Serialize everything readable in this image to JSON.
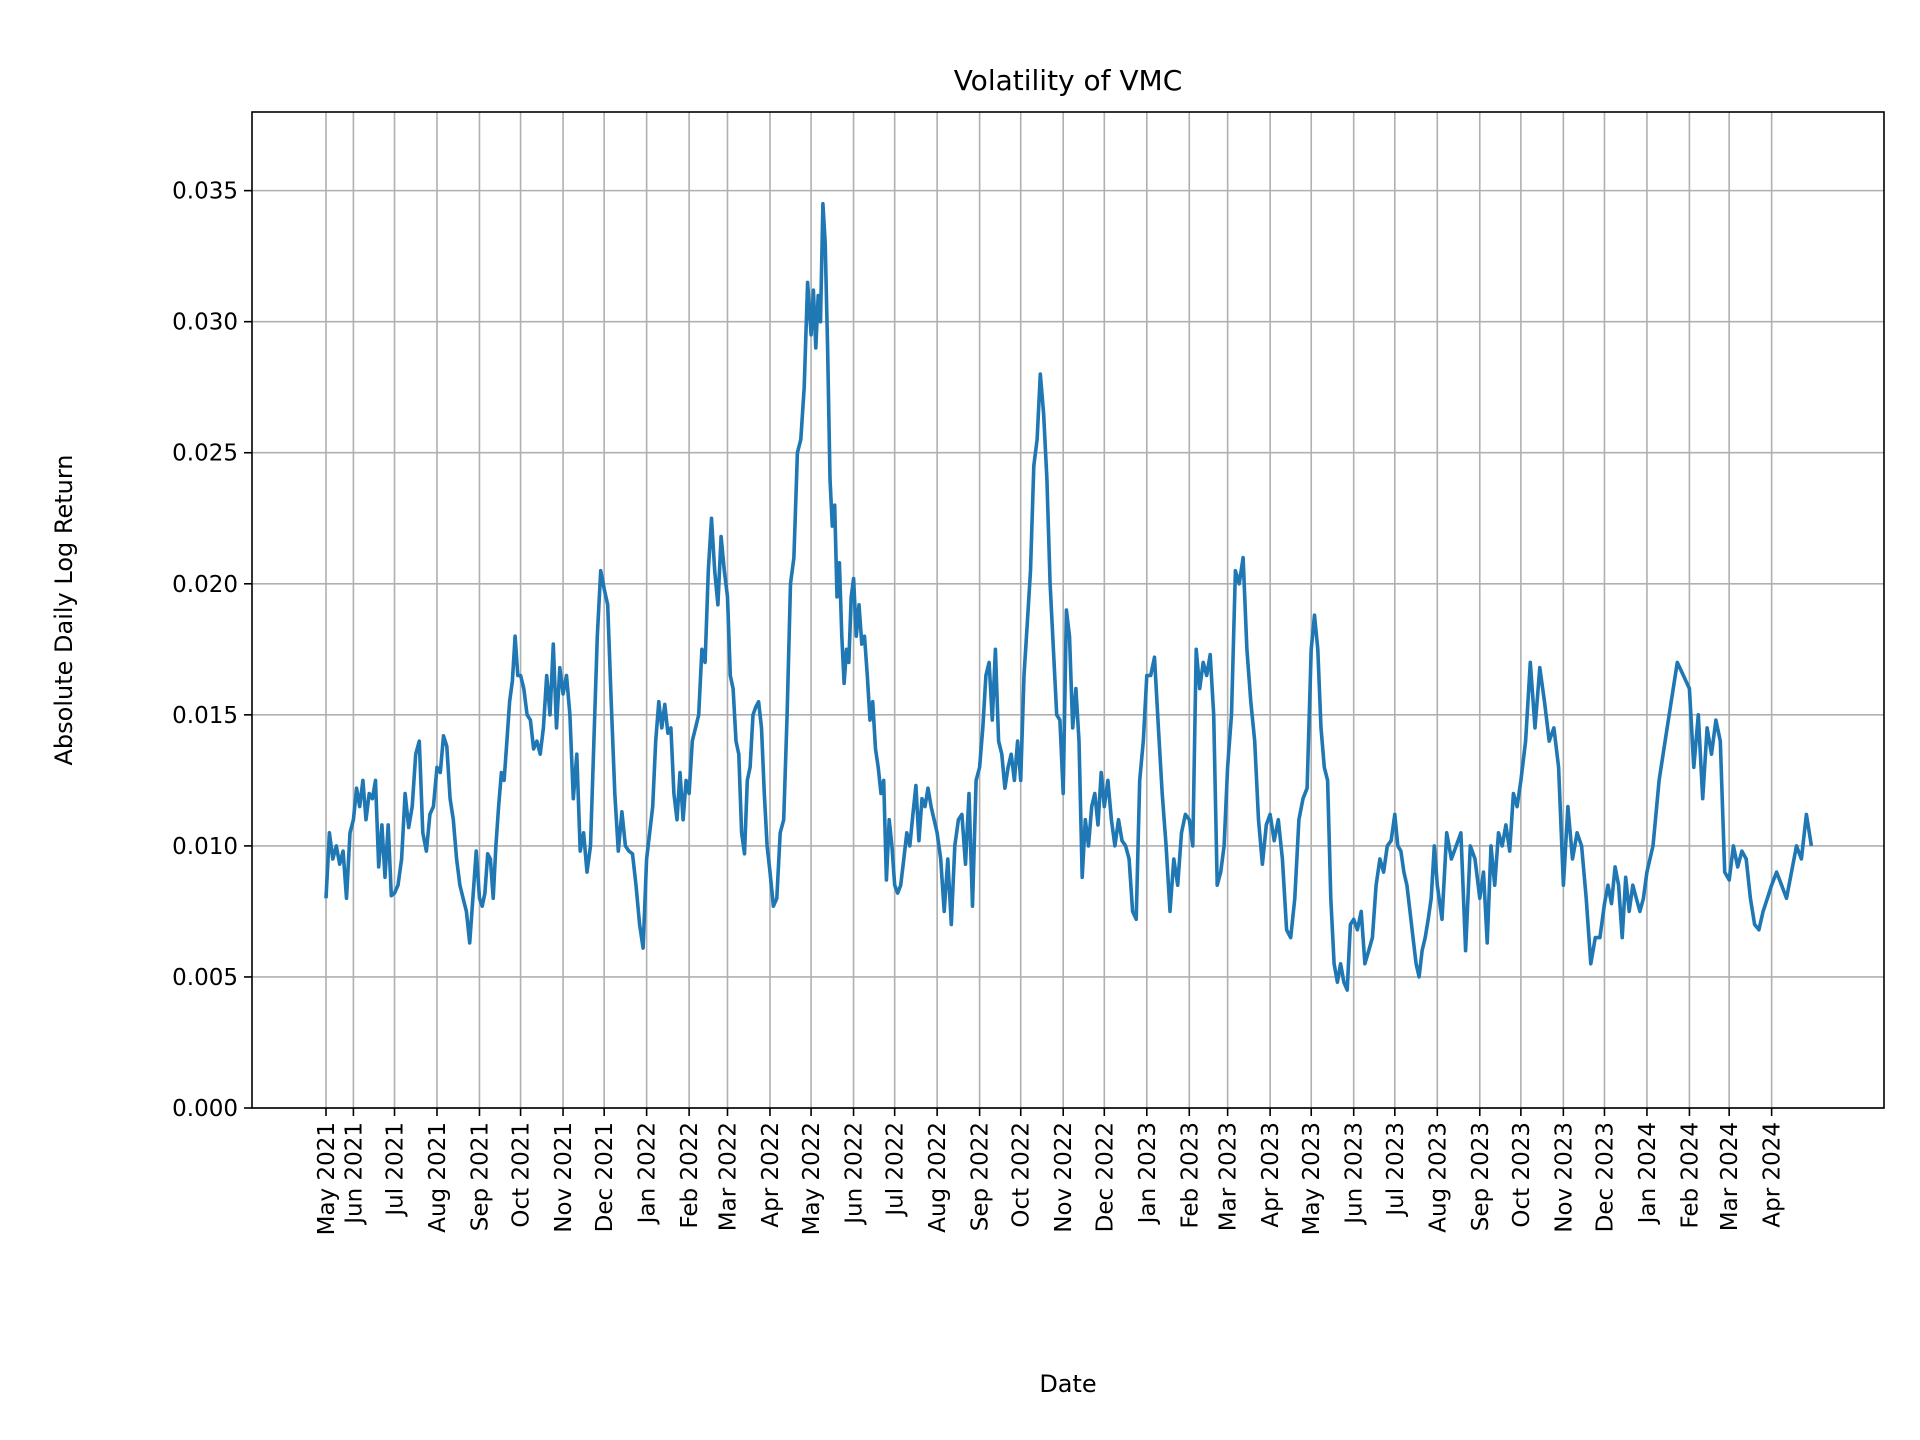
{
  "chart_data": {
    "type": "line",
    "title": "Volatility of VMC",
    "xlabel": "Date",
    "ylabel": "Absolute Daily Log Return",
    "xlim": [
      "2021-03-19",
      "2024-06-22"
    ],
    "ylim": [
      0,
      0.038
    ],
    "grid": true,
    "line_color": "#1f77b4",
    "grid_color": "#b0b0b0",
    "yticks": [
      0,
      0.005,
      0.01,
      0.015,
      0.02,
      0.025,
      0.03,
      0.035
    ],
    "ytick_labels": [
      "0.000",
      "0.005",
      "0.010",
      "0.015",
      "0.020",
      "0.025",
      "0.030",
      "0.035"
    ],
    "xticks": [
      {
        "date": "2021-05-12",
        "label": "May 2021"
      },
      {
        "date": "2021-06-01",
        "label": "Jun 2021"
      },
      {
        "date": "2021-07-01",
        "label": "Jul 2021"
      },
      {
        "date": "2021-08-01",
        "label": "Aug 2021"
      },
      {
        "date": "2021-09-01",
        "label": "Sep 2021"
      },
      {
        "date": "2021-10-01",
        "label": "Oct 2021"
      },
      {
        "date": "2021-11-01",
        "label": "Nov 2021"
      },
      {
        "date": "2021-12-01",
        "label": "Dec 2021"
      },
      {
        "date": "2022-01-01",
        "label": "Jan 2022"
      },
      {
        "date": "2022-02-01",
        "label": "Feb 2022"
      },
      {
        "date": "2022-03-01",
        "label": "Mar 2022"
      },
      {
        "date": "2022-04-01",
        "label": "Apr 2022"
      },
      {
        "date": "2022-05-01",
        "label": "May 2022"
      },
      {
        "date": "2022-06-01",
        "label": "Jun 2022"
      },
      {
        "date": "2022-07-01",
        "label": "Jul 2022"
      },
      {
        "date": "2022-08-01",
        "label": "Aug 2022"
      },
      {
        "date": "2022-09-01",
        "label": "Sep 2022"
      },
      {
        "date": "2022-10-01",
        "label": "Oct 2022"
      },
      {
        "date": "2022-11-01",
        "label": "Nov 2022"
      },
      {
        "date": "2022-12-01",
        "label": "Dec 2022"
      },
      {
        "date": "2023-01-01",
        "label": "Jan 2023"
      },
      {
        "date": "2023-02-01",
        "label": "Feb 2023"
      },
      {
        "date": "2023-03-01",
        "label": "Mar 2023"
      },
      {
        "date": "2023-04-01",
        "label": "Apr 2023"
      },
      {
        "date": "2023-05-01",
        "label": "May 2023"
      },
      {
        "date": "2023-06-01",
        "label": "Jun 2023"
      },
      {
        "date": "2023-07-01",
        "label": "Jul 2023"
      },
      {
        "date": "2023-08-01",
        "label": "Aug 2023"
      },
      {
        "date": "2023-09-01",
        "label": "Sep 2023"
      },
      {
        "date": "2023-10-01",
        "label": "Oct 2023"
      },
      {
        "date": "2023-11-01",
        "label": "Nov 2023"
      },
      {
        "date": "2023-12-01",
        "label": "Dec 2023"
      },
      {
        "date": "2024-01-01",
        "label": "Jan 2024"
      },
      {
        "date": "2024-02-01",
        "label": "Feb 2024"
      },
      {
        "date": "2024-03-01",
        "label": "Mar 2024"
      },
      {
        "date": "2024-04-01",
        "label": "Apr 2024"
      }
    ],
    "series_by_period": [
      {
        "start": "2021-05-12",
        "values": [
          0.008,
          0.0105,
          0.0095,
          0.01,
          0.0093,
          0.0098,
          0.008,
          0.0105
        ]
      },
      {
        "start": "2021-06-01",
        "values": [
          0.011,
          0.0122,
          0.0115,
          0.0125,
          0.011,
          0.012,
          0.0118,
          0.0125,
          0.0092,
          0.0108,
          0.0088,
          0.0108,
          0.0081
        ]
      },
      {
        "start": "2021-07-01",
        "values": [
          0.0082,
          0.0085,
          0.0095,
          0.012,
          0.0107,
          0.0115,
          0.0135,
          0.014,
          0.0105,
          0.0098,
          0.0112,
          0.0115
        ]
      },
      {
        "start": "2021-08-01",
        "values": [
          0.013,
          0.0128,
          0.0142,
          0.0138,
          0.0118,
          0.011,
          0.0095,
          0.0085,
          0.008,
          0.0075,
          0.0063,
          0.008,
          0.0098
        ]
      },
      {
        "start": "2021-09-01",
        "values": [
          0.008,
          0.0077,
          0.0082,
          0.0097,
          0.0095,
          0.008,
          0.01,
          0.0115,
          0.0128,
          0.0125,
          0.014,
          0.0155,
          0.0163,
          0.018,
          0.0165
        ]
      },
      {
        "start": "2021-10-01",
        "values": [
          0.0165,
          0.016,
          0.015,
          0.0148,
          0.0137,
          0.014,
          0.0135,
          0.0145,
          0.0165,
          0.015,
          0.0177,
          0.0145,
          0.0168
        ]
      },
      {
        "start": "2021-11-01",
        "values": [
          0.0158,
          0.0165,
          0.015,
          0.0118,
          0.0135,
          0.0098,
          0.0105,
          0.009,
          0.01,
          0.014,
          0.018,
          0.0205
        ]
      },
      {
        "start": "2021-12-01",
        "values": [
          0.0198,
          0.0192,
          0.0155,
          0.012,
          0.0098,
          0.0113,
          0.01,
          0.0098,
          0.0097,
          0.0085,
          0.007,
          0.0061
        ]
      },
      {
        "start": "2022-01-01",
        "values": [
          0.0095,
          0.0105,
          0.0115,
          0.014,
          0.0155,
          0.0145,
          0.0154,
          0.0143,
          0.0145,
          0.012,
          0.011,
          0.0128,
          0.011,
          0.0125
        ]
      },
      {
        "start": "2022-02-01",
        "values": [
          0.012,
          0.014,
          0.0145,
          0.015,
          0.0175,
          0.017,
          0.0205,
          0.0225,
          0.0205,
          0.0192,
          0.0218,
          0.0205
        ]
      },
      {
        "start": "2022-03-01",
        "values": [
          0.0195,
          0.0165,
          0.016,
          0.014,
          0.0135,
          0.0105,
          0.0097,
          0.0125,
          0.013,
          0.015,
          0.0153,
          0.0155,
          0.0145,
          0.012,
          0.01
        ]
      },
      {
        "start": "2022-04-01",
        "values": [
          0.009,
          0.0077,
          0.008,
          0.0105,
          0.011,
          0.015,
          0.02,
          0.021,
          0.025,
          0.0255,
          0.0275,
          0.0315
        ]
      },
      {
        "start": "2022-05-01",
        "values": [
          0.0295,
          0.0312,
          0.029,
          0.031,
          0.03,
          0.0345,
          0.033,
          0.029,
          0.024,
          0.0222,
          0.023,
          0.0195,
          0.0208,
          0.018,
          0.0162,
          0.0175,
          0.017,
          0.0195
        ]
      },
      {
        "start": "2022-06-01",
        "values": [
          0.0202,
          0.018,
          0.0192,
          0.0177,
          0.018,
          0.0165,
          0.0148,
          0.0155,
          0.0137,
          0.013,
          0.012,
          0.0125,
          0.0087,
          0.011,
          0.01
        ]
      },
      {
        "start": "2022-07-01",
        "values": [
          0.0085,
          0.0082,
          0.0085,
          0.0095,
          0.0105,
          0.01,
          0.0112,
          0.0123,
          0.0102,
          0.0118,
          0.0115,
          0.0122,
          0.0115,
          0.011
        ]
      },
      {
        "start": "2022-08-01",
        "values": [
          0.0105,
          0.0095,
          0.0075,
          0.0095,
          0.007,
          0.01,
          0.011,
          0.0112,
          0.0093,
          0.012,
          0.0077,
          0.0125
        ]
      },
      {
        "start": "2022-09-01",
        "values": [
          0.013,
          0.0145,
          0.0165,
          0.017,
          0.0148,
          0.0175,
          0.014,
          0.0135,
          0.0122,
          0.013,
          0.0135,
          0.0125,
          0.014
        ]
      },
      {
        "start": "2022-10-01",
        "values": [
          0.0125,
          0.0165,
          0.0185,
          0.0205,
          0.0245,
          0.0255,
          0.028,
          0.0265,
          0.024,
          0.02,
          0.0175,
          0.015,
          0.0148
        ]
      },
      {
        "start": "2022-11-01",
        "values": [
          0.012,
          0.019,
          0.018,
          0.0145,
          0.016,
          0.014,
          0.0088,
          0.011,
          0.01,
          0.0115,
          0.012,
          0.0108,
          0.0128
        ]
      },
      {
        "start": "2022-12-01",
        "values": [
          0.0115,
          0.0125,
          0.011,
          0.01,
          0.011,
          0.0102,
          0.01,
          0.0095,
          0.0075,
          0.0072,
          0.0125,
          0.014
        ]
      },
      {
        "start": "2023-01-01",
        "values": [
          0.0165,
          0.0165,
          0.0172,
          0.0145,
          0.012,
          0.01,
          0.0075,
          0.0095,
          0.0085,
          0.0105,
          0.0112
        ]
      },
      {
        "start": "2023-02-01",
        "values": [
          0.011,
          0.01,
          0.0175,
          0.016,
          0.017,
          0.0165,
          0.0173,
          0.015,
          0.0085,
          0.009,
          0.01
        ]
      },
      {
        "start": "2023-03-01",
        "values": [
          0.013,
          0.015,
          0.0205,
          0.02,
          0.021,
          0.0175,
          0.0155,
          0.014,
          0.011,
          0.0093,
          0.0108
        ]
      },
      {
        "start": "2023-04-01",
        "values": [
          0.0112,
          0.0102,
          0.011,
          0.0095,
          0.0068,
          0.0065,
          0.008,
          0.011,
          0.0118,
          0.0122
        ]
      },
      {
        "start": "2023-05-01",
        "values": [
          0.0175,
          0.0188,
          0.0175,
          0.0145,
          0.013,
          0.0125,
          0.008,
          0.0055,
          0.0048,
          0.0055,
          0.0048,
          0.0045,
          0.007
        ]
      },
      {
        "start": "2023-06-01",
        "values": [
          0.0072,
          0.0068,
          0.0075,
          0.0055,
          0.006,
          0.0065,
          0.0085,
          0.0095,
          0.009,
          0.01,
          0.0102
        ]
      },
      {
        "start": "2023-07-01",
        "values": [
          0.0112,
          0.01,
          0.0098,
          0.009,
          0.0085,
          0.0075,
          0.0065,
          0.0055,
          0.005,
          0.006,
          0.0065,
          0.0072,
          0.008,
          0.01
        ]
      },
      {
        "start": "2023-08-01",
        "values": [
          0.0085,
          0.0072,
          0.0105,
          0.0095,
          0.01,
          0.0105,
          0.006,
          0.01,
          0.0095
        ]
      },
      {
        "start": "2023-09-01",
        "values": [
          0.008,
          0.009,
          0.0063,
          0.01,
          0.0085,
          0.0105,
          0.01,
          0.0108,
          0.0098,
          0.012,
          0.0115
        ]
      },
      {
        "start": "2023-10-01",
        "values": [
          0.0125,
          0.014,
          0.017,
          0.0145,
          0.0168,
          0.0155,
          0.014,
          0.0145,
          0.013
        ]
      },
      {
        "start": "2023-11-01",
        "values": [
          0.0085,
          0.0115,
          0.0095,
          0.0105,
          0.01,
          0.008,
          0.0055,
          0.0065,
          0.0065
        ]
      },
      {
        "start": "2023-12-01",
        "values": [
          0.0078,
          0.0085,
          0.0078,
          0.0092,
          0.0085,
          0.0065,
          0.0088,
          0.0075,
          0.0085,
          0.008,
          0.0075,
          0.008
        ]
      },
      {
        "start": "2024-01-01",
        "values": [
          0.009,
          0.01,
          0.0125,
          0.014,
          0.0155,
          0.017,
          0.0165
        ]
      },
      {
        "start": "2024-02-01",
        "values": [
          0.016,
          0.013,
          0.015,
          0.0118,
          0.0145,
          0.0135,
          0.0148,
          0.014,
          0.009
        ]
      },
      {
        "start": "2024-03-01",
        "values": [
          0.0087,
          0.01,
          0.0092,
          0.0098,
          0.0095,
          0.008,
          0.007,
          0.0068,
          0.0075,
          0.008
        ]
      },
      {
        "start": "2024-04-01",
        "end": "2024-04-30",
        "values": [
          0.0085,
          0.009,
          0.0085,
          0.008,
          0.009,
          0.01,
          0.0095,
          0.0112,
          0.01
        ]
      }
    ]
  }
}
